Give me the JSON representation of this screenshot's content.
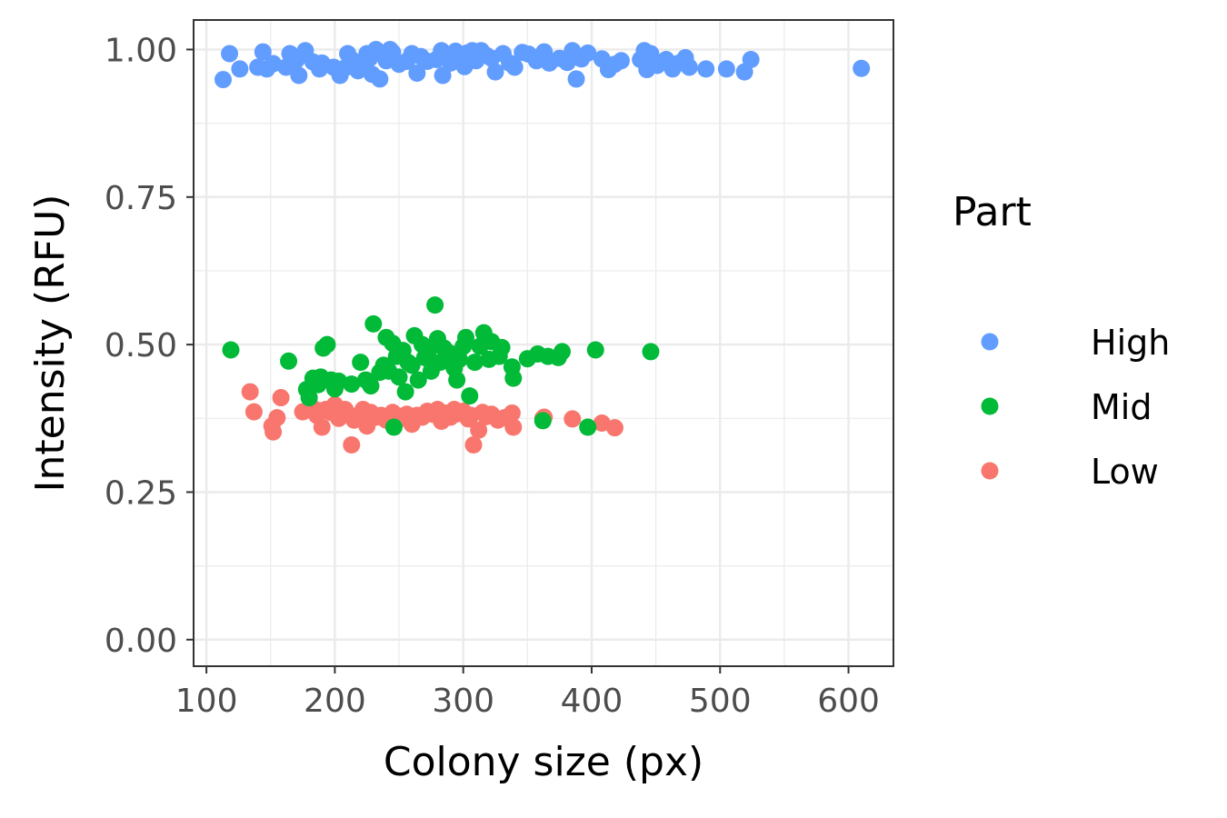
{
  "chart_data": {
    "type": "scatter",
    "xlabel": "Colony size (px)",
    "ylabel": "Intensity (RFU)",
    "xlim": [
      90,
      635
    ],
    "ylim": [
      -0.045,
      1.05
    ],
    "x_ticks": [
      100,
      200,
      300,
      400,
      500,
      600
    ],
    "x_tick_labels": [
      "100",
      "200",
      "300",
      "400",
      "500",
      "600"
    ],
    "y_ticks": [
      0.0,
      0.25,
      0.5,
      0.75,
      1.0
    ],
    "y_tick_labels": [
      "0.00",
      "0.25",
      "0.50",
      "0.75",
      "1.00"
    ],
    "grid": true,
    "legend": {
      "title": "Part",
      "position": "right",
      "entries": [
        "High",
        "Mid",
        "Low"
      ]
    },
    "colors": {
      "High": "#619CFF",
      "Mid": "#00BA38",
      "Low": "#F8766D"
    },
    "series": [
      {
        "name": "High",
        "color": "#619CFF",
        "points": [
          [
            113,
            0.949
          ],
          [
            118,
            0.993
          ],
          [
            126,
            0.967
          ],
          [
            140,
            0.97
          ],
          [
            144,
            0.996
          ],
          [
            147,
            0.967
          ],
          [
            152,
            0.976
          ],
          [
            162,
            0.97
          ],
          [
            165,
            0.993
          ],
          [
            170,
            0.982
          ],
          [
            172,
            0.956
          ],
          [
            177,
            0.998
          ],
          [
            183,
            0.979
          ],
          [
            188,
            0.967
          ],
          [
            190,
            0.977
          ],
          [
            199,
            0.97
          ],
          [
            204,
            0.956
          ],
          [
            208,
            0.969
          ],
          [
            210,
            0.993
          ],
          [
            213,
            0.983
          ],
          [
            218,
            0.964
          ],
          [
            221,
            0.975
          ],
          [
            225,
            0.993
          ],
          [
            227,
            0.985
          ],
          [
            229,
            0.958
          ],
          [
            232,
            1.0
          ],
          [
            235,
            0.95
          ],
          [
            240,
            0.981
          ],
          [
            243,
            1.0
          ],
          [
            245,
            0.995
          ],
          [
            250,
            0.975
          ],
          [
            256,
            0.98
          ],
          [
            260,
            0.993
          ],
          [
            264,
            0.96
          ],
          [
            267,
            0.988
          ],
          [
            272,
            0.98
          ],
          [
            279,
            0.983
          ],
          [
            283,
            0.998
          ],
          [
            284,
            0.956
          ],
          [
            287,
            0.99
          ],
          [
            290,
            0.977
          ],
          [
            294,
            0.997
          ],
          [
            298,
            0.983
          ],
          [
            301,
            0.971
          ],
          [
            303,
            0.994
          ],
          [
            307,
            0.998
          ],
          [
            310,
            0.981
          ],
          [
            314,
            0.998
          ],
          [
            318,
            0.99
          ],
          [
            322,
            0.985
          ],
          [
            325,
            0.962
          ],
          [
            331,
            0.993
          ],
          [
            336,
            0.977
          ],
          [
            340,
            0.97
          ],
          [
            346,
            0.995
          ],
          [
            351,
            0.992
          ],
          [
            357,
            0.981
          ],
          [
            363,
            0.996
          ],
          [
            367,
            0.977
          ],
          [
            375,
            0.985
          ],
          [
            381,
            0.978
          ],
          [
            385,
            0.998
          ],
          [
            388,
            0.95
          ],
          [
            392,
            0.984
          ],
          [
            397,
            0.994
          ],
          [
            408,
            0.984
          ],
          [
            413,
            0.966
          ],
          [
            418,
            0.975
          ],
          [
            423,
            0.981
          ],
          [
            438,
            0.983
          ],
          [
            441,
            0.998
          ],
          [
            443,
            0.966
          ],
          [
            446,
            0.993
          ],
          [
            451,
            0.973
          ],
          [
            458,
            0.983
          ],
          [
            463,
            0.967
          ],
          [
            468,
            0.977
          ],
          [
            473,
            0.986
          ],
          [
            476,
            0.97
          ],
          [
            489,
            0.967
          ],
          [
            505,
            0.967
          ],
          [
            519,
            0.962
          ],
          [
            524,
            0.983
          ],
          [
            610,
            0.968
          ]
        ]
      },
      {
        "name": "Mid",
        "color": "#00BA38",
        "points": [
          [
            119,
            0.491
          ],
          [
            164,
            0.472
          ],
          [
            178,
            0.424
          ],
          [
            180,
            0.41
          ],
          [
            183,
            0.443
          ],
          [
            185,
            0.44
          ],
          [
            187,
            0.432
          ],
          [
            189,
            0.445
          ],
          [
            191,
            0.494
          ],
          [
            194,
            0.5
          ],
          [
            197,
            0.44
          ],
          [
            200,
            0.425
          ],
          [
            203,
            0.438
          ],
          [
            213,
            0.433
          ],
          [
            220,
            0.47
          ],
          [
            224,
            0.44
          ],
          [
            228,
            0.43
          ],
          [
            230,
            0.535
          ],
          [
            235,
            0.453
          ],
          [
            238,
            0.465
          ],
          [
            240,
            0.512
          ],
          [
            242,
            0.455
          ],
          [
            245,
            0.502
          ],
          [
            248,
            0.48
          ],
          [
            250,
            0.445
          ],
          [
            253,
            0.49
          ],
          [
            255,
            0.42
          ],
          [
            257,
            0.47
          ],
          [
            260,
            0.465
          ],
          [
            262,
            0.515
          ],
          [
            265,
            0.44
          ],
          [
            268,
            0.5
          ],
          [
            270,
            0.478
          ],
          [
            273,
            0.49
          ],
          [
            275,
            0.455
          ],
          [
            278,
            0.567
          ],
          [
            280,
            0.51
          ],
          [
            282,
            0.47
          ],
          [
            285,
            0.494
          ],
          [
            290,
            0.485
          ],
          [
            293,
            0.46
          ],
          [
            295,
            0.44
          ],
          [
            297,
            0.475
          ],
          [
            300,
            0.497
          ],
          [
            302,
            0.512
          ],
          [
            305,
            0.413
          ],
          [
            309,
            0.47
          ],
          [
            313,
            0.497
          ],
          [
            316,
            0.52
          ],
          [
            320,
            0.475
          ],
          [
            322,
            0.505
          ],
          [
            328,
            0.48
          ],
          [
            330,
            0.495
          ],
          [
            338,
            0.462
          ],
          [
            339,
            0.443
          ],
          [
            350,
            0.476
          ],
          [
            358,
            0.484
          ],
          [
            366,
            0.48
          ],
          [
            374,
            0.478
          ],
          [
            377,
            0.488
          ],
          [
            403,
            0.491
          ],
          [
            446,
            0.488
          ],
          [
            246,
            0.36
          ],
          [
            362,
            0.371
          ],
          [
            397,
            0.36
          ]
        ]
      },
      {
        "name": "Low",
        "color": "#F8766D",
        "points": [
          [
            134,
            0.42
          ],
          [
            137,
            0.386
          ],
          [
            151,
            0.362
          ],
          [
            152,
            0.352
          ],
          [
            155,
            0.376
          ],
          [
            158,
            0.41
          ],
          [
            175,
            0.386
          ],
          [
            183,
            0.392
          ],
          [
            186,
            0.38
          ],
          [
            188,
            0.388
          ],
          [
            190,
            0.36
          ],
          [
            193,
            0.39
          ],
          [
            197,
            0.385
          ],
          [
            200,
            0.398
          ],
          [
            203,
            0.375
          ],
          [
            208,
            0.39
          ],
          [
            213,
            0.33
          ],
          [
            215,
            0.372
          ],
          [
            218,
            0.38
          ],
          [
            222,
            0.39
          ],
          [
            225,
            0.362
          ],
          [
            228,
            0.385
          ],
          [
            232,
            0.377
          ],
          [
            236,
            0.38
          ],
          [
            240,
            0.372
          ],
          [
            245,
            0.385
          ],
          [
            248,
            0.38
          ],
          [
            252,
            0.375
          ],
          [
            256,
            0.382
          ],
          [
            260,
            0.365
          ],
          [
            264,
            0.38
          ],
          [
            268,
            0.377
          ],
          [
            272,
            0.387
          ],
          [
            276,
            0.382
          ],
          [
            280,
            0.39
          ],
          [
            283,
            0.37
          ],
          [
            286,
            0.384
          ],
          [
            290,
            0.377
          ],
          [
            293,
            0.39
          ],
          [
            296,
            0.383
          ],
          [
            300,
            0.387
          ],
          [
            304,
            0.374
          ],
          [
            306,
            0.38
          ],
          [
            308,
            0.33
          ],
          [
            312,
            0.355
          ],
          [
            315,
            0.385
          ],
          [
            318,
            0.378
          ],
          [
            322,
            0.382
          ],
          [
            327,
            0.372
          ],
          [
            332,
            0.376
          ],
          [
            338,
            0.384
          ],
          [
            339,
            0.36
          ],
          [
            362,
            0.375
          ],
          [
            363,
            0.377
          ],
          [
            385,
            0.374
          ],
          [
            408,
            0.367
          ],
          [
            418,
            0.359
          ]
        ]
      }
    ]
  }
}
